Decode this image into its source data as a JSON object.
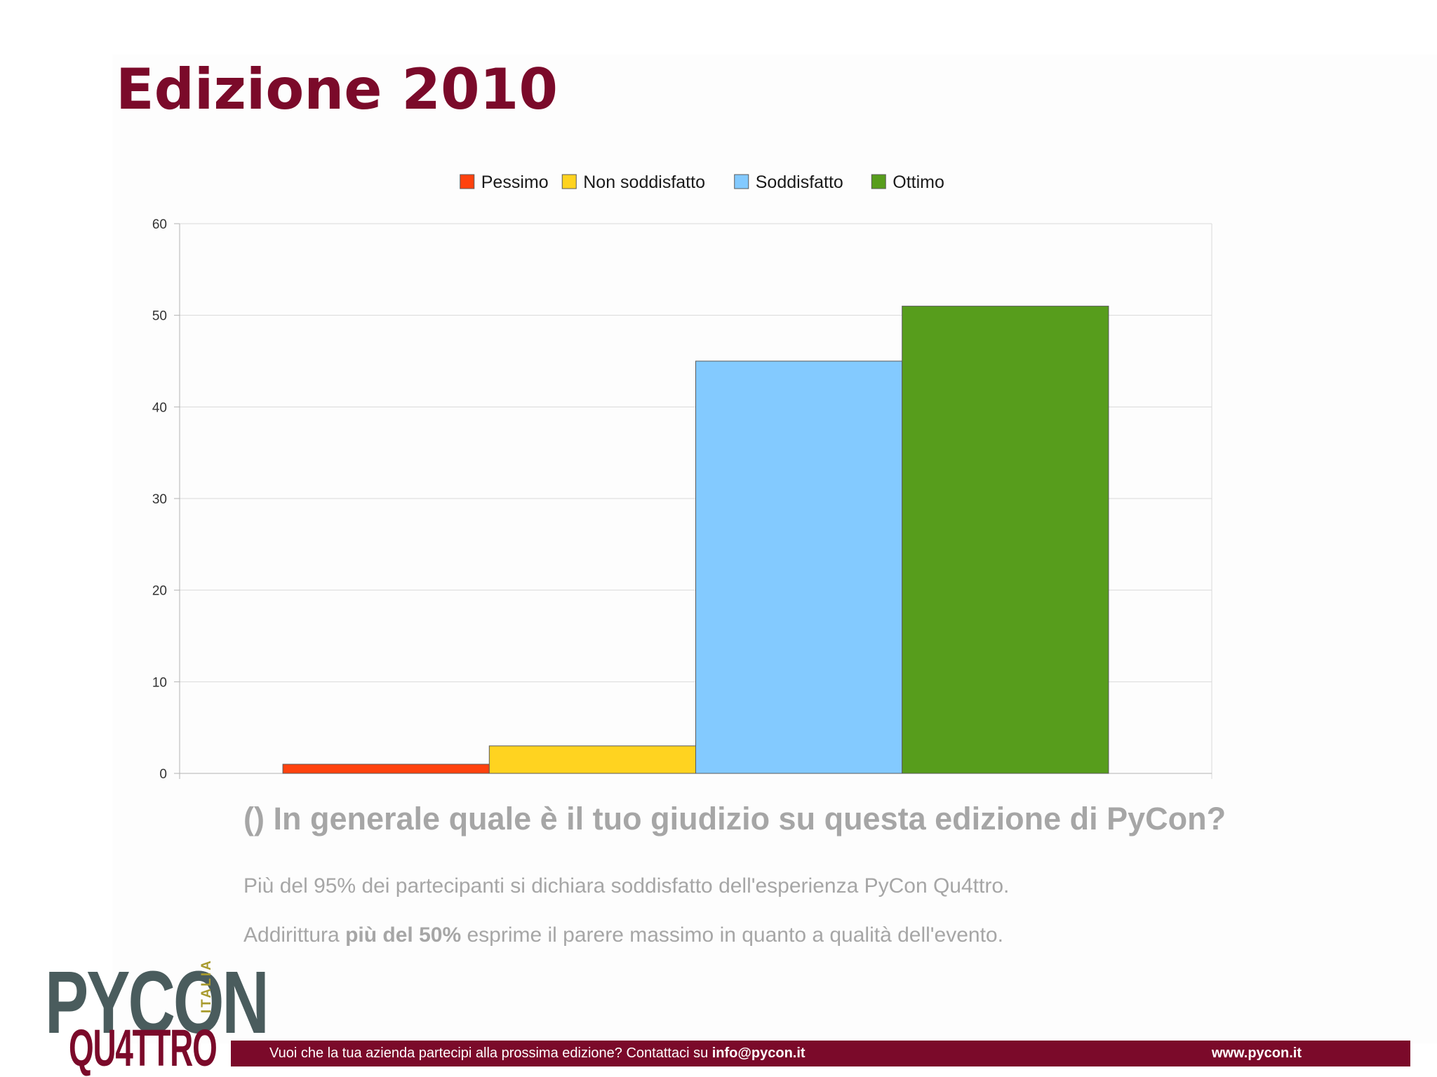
{
  "slide": {
    "title": "Edizione 2010",
    "question": "() In generale quale è il tuo giudizio su questa edizione di PyCon?",
    "line1": "Più del 95% dei partecipanti si dichiara soddisfatto dell'esperienza PyCon Qu4ttro.",
    "line2": {
      "before": "Addirittura ",
      "bold": "più del 50%",
      "after": " esprime il parere massimo in quanto a qualità dell'evento."
    }
  },
  "logo": {
    "pycon": "PYCON",
    "italia": "ITALIA",
    "quattro": "QU4TTRO"
  },
  "footer": {
    "text": "Vuoi che la tua azienda partecipi alla prossima edizione? Contattaci su ",
    "email": "info@pycon.it",
    "url": "www.pycon.it"
  },
  "colors": {
    "brand": "#7b0a2a",
    "muted_text": "#a6a6a6"
  },
  "chart_data": {
    "type": "bar",
    "series": [
      {
        "name": "Pessimo",
        "value": 1,
        "color": "#ff420e"
      },
      {
        "name": "Non soddisfatto",
        "value": 3,
        "color": "#ffd320"
      },
      {
        "name": "Soddisfatto",
        "value": 45,
        "color": "#83caff"
      },
      {
        "name": "Ottimo",
        "value": 51,
        "color": "#579d1c"
      }
    ],
    "yticks": [
      0,
      10,
      20,
      30,
      40,
      50,
      60
    ],
    "ylim": [
      0,
      60
    ],
    "grid": true,
    "legend": "top"
  }
}
